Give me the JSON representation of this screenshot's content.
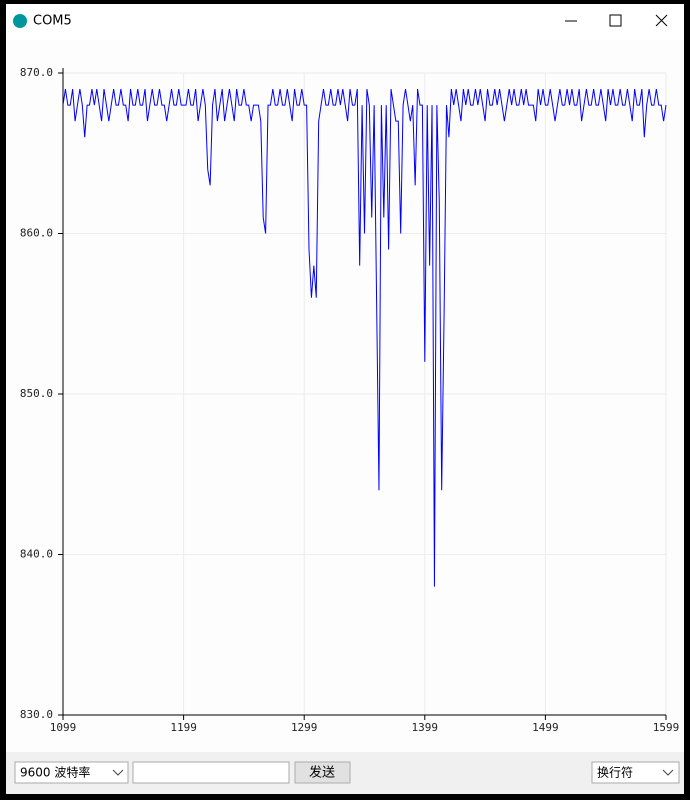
{
  "window": {
    "title": "COM5"
  },
  "chart_data": {
    "type": "line",
    "color": "#0000ff",
    "xlim": [
      1099,
      1599
    ],
    "xticks": [
      1099,
      1199,
      1299,
      1399,
      1499,
      1599
    ],
    "ylim": [
      830,
      870
    ],
    "yticks": [
      {
        "value": 830,
        "label": "830.0"
      },
      {
        "value": 840,
        "label": "840.0"
      },
      {
        "value": 850,
        "label": "850.0"
      },
      {
        "value": 860,
        "label": "860.0"
      },
      {
        "value": 870,
        "label": "870.0"
      }
    ],
    "grid": true,
    "values": [
      868,
      869,
      868,
      868,
      869,
      867,
      868,
      869,
      868,
      866,
      868,
      868,
      869,
      868,
      869,
      868,
      867,
      869,
      868,
      867,
      868,
      869,
      868,
      868,
      869,
      868,
      868,
      867,
      869,
      868,
      868,
      869,
      868,
      868,
      869,
      867,
      868,
      869,
      868,
      868,
      869,
      868,
      868,
      867,
      868,
      869,
      868,
      868,
      869,
      868,
      868,
      868,
      869,
      868,
      868,
      869,
      867,
      868,
      869,
      868,
      864,
      863,
      868,
      869,
      867,
      868,
      869,
      867,
      868,
      869,
      868,
      867,
      869,
      868,
      868,
      869,
      868,
      868,
      867,
      868,
      868,
      868,
      867,
      861,
      860,
      868,
      868,
      869,
      868,
      868,
      869,
      868,
      868,
      869,
      868,
      867,
      869,
      868,
      868,
      869,
      868,
      868,
      859,
      856,
      858,
      856,
      867,
      868,
      869,
      868,
      868,
      869,
      868,
      868,
      869,
      868,
      869,
      868,
      867,
      869,
      868,
      868,
      869,
      858,
      868,
      860,
      869,
      868,
      861,
      868,
      856,
      844,
      868,
      861,
      868,
      859,
      869,
      868,
      867,
      867,
      860,
      868,
      869,
      868,
      867,
      868,
      863,
      869,
      868,
      868,
      852,
      868,
      858,
      868,
      838,
      868,
      862,
      844,
      855,
      868,
      866,
      869,
      868,
      869,
      868,
      867,
      869,
      868,
      869,
      868,
      868,
      869,
      868,
      869,
      868,
      867,
      869,
      868,
      868,
      869,
      868,
      869,
      868,
      867,
      868,
      869,
      868,
      869,
      868,
      868,
      869,
      868,
      869,
      868,
      868,
      868,
      867,
      869,
      868,
      869,
      868,
      868,
      869,
      868,
      867,
      868,
      869,
      868,
      868,
      869,
      868,
      869,
      868,
      868,
      869,
      867,
      868,
      869,
      868,
      868,
      869,
      868,
      868,
      869,
      868,
      867,
      869,
      868,
      869,
      868,
      868,
      869,
      868,
      868,
      869,
      868,
      867,
      869,
      868,
      868,
      869,
      866,
      868,
      869,
      868,
      868,
      869,
      868,
      868,
      867,
      868
    ]
  },
  "toolbar": {
    "baud": "9600 波特率",
    "send": "发送",
    "line_ending": "换行符"
  }
}
